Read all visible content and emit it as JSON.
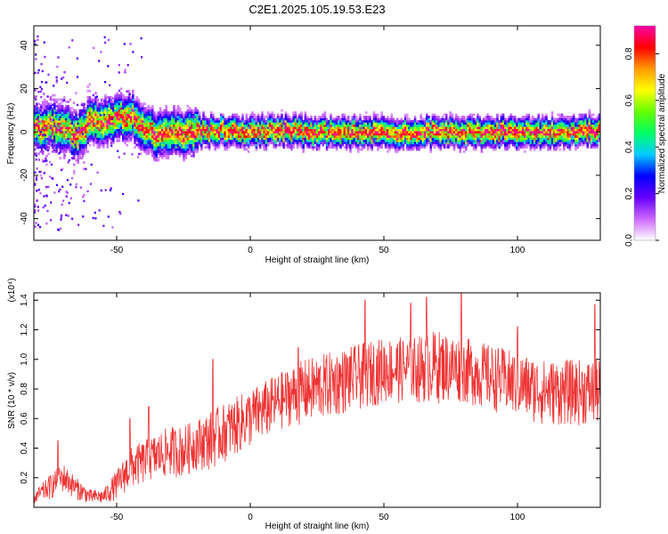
{
  "figure": {
    "title": "C2E1.2025.105.19.53.E23"
  },
  "chart_data": [
    {
      "type": "heatmap",
      "xlabel": "Height of straight line (km)",
      "ylabel": "Frequency (Hz)",
      "xlim": [
        -81,
        131
      ],
      "ylim": [
        -50,
        49
      ],
      "xticks": [
        -50,
        0,
        50,
        100
      ],
      "yticks": [
        -40,
        -20,
        0,
        20,
        40
      ],
      "ridge": [
        {
          "x": -80,
          "y": 2
        },
        {
          "x": -75,
          "y": 3
        },
        {
          "x": -70,
          "y": 2
        },
        {
          "x": -65,
          "y": -2
        },
        {
          "x": -60,
          "y": 5
        },
        {
          "x": -55,
          "y": 5
        },
        {
          "x": -50,
          "y": 6
        },
        {
          "x": -45,
          "y": 8
        },
        {
          "x": -40,
          "y": 2
        },
        {
          "x": -35,
          "y": -2
        },
        {
          "x": -30,
          "y": 1
        },
        {
          "x": -25,
          "y": -1
        },
        {
          "x": -20,
          "y": 0
        },
        {
          "x": -10,
          "y": 1
        },
        {
          "x": 0,
          "y": 0
        },
        {
          "x": 10,
          "y": 1
        },
        {
          "x": 20,
          "y": 0
        },
        {
          "x": 40,
          "y": 0
        },
        {
          "x": 60,
          "y": 0
        },
        {
          "x": 80,
          "y": 0
        },
        {
          "x": 100,
          "y": 0
        },
        {
          "x": 120,
          "y": 0
        },
        {
          "x": 130,
          "y": 1
        }
      ],
      "colorbar": {
        "label": "Normalized spectral amplitude",
        "range": [
          0.0,
          0.92
        ],
        "ticks": [
          0.0,
          0.2,
          0.4,
          0.6,
          0.8
        ],
        "colormap": [
          "#ffffff",
          "#cc66ff",
          "#6600ff",
          "#0000ff",
          "#00ccff",
          "#00ff66",
          "#66ff00",
          "#ffff00",
          "#ff9900",
          "#ff0000",
          "#ff00aa"
        ]
      }
    },
    {
      "type": "line",
      "xlabel": "Height of straight line (km)",
      "ylabel": "SNR (10 * v/v)",
      "y_multiplier": "(x10⁴)",
      "xlim": [
        -81,
        131
      ],
      "ylim": [
        0.0,
        1.45
      ],
      "xticks": [
        -50,
        0,
        50,
        100
      ],
      "yticks": [
        0.2,
        0.4,
        0.6,
        0.8,
        1.0,
        1.2,
        1.4
      ],
      "series": [
        {
          "color": "#ee3333",
          "envelope": [
            {
              "x": -81,
              "lo": 0.02,
              "hi": 0.1
            },
            {
              "x": -75,
              "lo": 0.05,
              "hi": 0.22
            },
            {
              "x": -70,
              "lo": 0.1,
              "hi": 0.3
            },
            {
              "x": -65,
              "lo": 0.05,
              "hi": 0.2
            },
            {
              "x": -60,
              "lo": 0.02,
              "hi": 0.12
            },
            {
              "x": -55,
              "lo": 0.02,
              "hi": 0.12
            },
            {
              "x": -50,
              "lo": 0.05,
              "hi": 0.25
            },
            {
              "x": -45,
              "lo": 0.12,
              "hi": 0.4
            },
            {
              "x": -40,
              "lo": 0.15,
              "hi": 0.45
            },
            {
              "x": -35,
              "lo": 0.18,
              "hi": 0.5
            },
            {
              "x": -30,
              "lo": 0.2,
              "hi": 0.55
            },
            {
              "x": -25,
              "lo": 0.2,
              "hi": 0.55
            },
            {
              "x": -20,
              "lo": 0.25,
              "hi": 0.6
            },
            {
              "x": -15,
              "lo": 0.25,
              "hi": 0.65
            },
            {
              "x": -10,
              "lo": 0.3,
              "hi": 0.7
            },
            {
              "x": -5,
              "lo": 0.35,
              "hi": 0.75
            },
            {
              "x": 0,
              "lo": 0.4,
              "hi": 0.8
            },
            {
              "x": 5,
              "lo": 0.45,
              "hi": 0.85
            },
            {
              "x": 10,
              "lo": 0.5,
              "hi": 0.9
            },
            {
              "x": 15,
              "lo": 0.55,
              "hi": 0.95
            },
            {
              "x": 20,
              "lo": 0.55,
              "hi": 1.0
            },
            {
              "x": 30,
              "lo": 0.6,
              "hi": 1.05
            },
            {
              "x": 40,
              "lo": 0.65,
              "hi": 1.1
            },
            {
              "x": 50,
              "lo": 0.7,
              "hi": 1.15
            },
            {
              "x": 60,
              "lo": 0.7,
              "hi": 1.15
            },
            {
              "x": 70,
              "lo": 0.7,
              "hi": 1.2
            },
            {
              "x": 80,
              "lo": 0.7,
              "hi": 1.15
            },
            {
              "x": 90,
              "lo": 0.65,
              "hi": 1.1
            },
            {
              "x": 100,
              "lo": 0.6,
              "hi": 1.05
            },
            {
              "x": 110,
              "lo": 0.55,
              "hi": 1.0
            },
            {
              "x": 120,
              "lo": 0.55,
              "hi": 1.0
            },
            {
              "x": 131,
              "lo": 0.55,
              "hi": 1.0
            }
          ],
          "spikes": [
            {
              "x": -72,
              "y": 0.45
            },
            {
              "x": -45,
              "y": 0.6
            },
            {
              "x": -38,
              "y": 0.68
            },
            {
              "x": -14,
              "y": 1.0
            },
            {
              "x": 18,
              "y": 1.08
            },
            {
              "x": 43,
              "y": 1.4
            },
            {
              "x": 60,
              "y": 1.38
            },
            {
              "x": 66,
              "y": 1.42
            },
            {
              "x": 79,
              "y": 1.45
            },
            {
              "x": 100,
              "y": 1.22
            },
            {
              "x": 129,
              "y": 1.37
            }
          ]
        }
      ]
    }
  ]
}
